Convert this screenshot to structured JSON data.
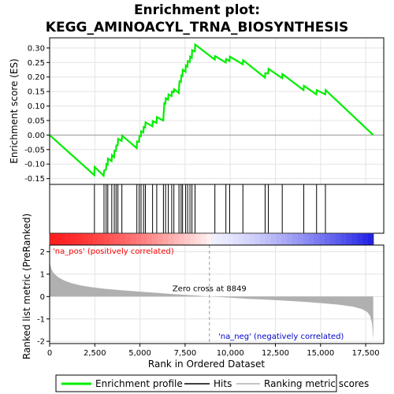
{
  "chart_data": {
    "type": "line",
    "title_line1": "Enrichment plot:",
    "title_line2": "KEGG_AMINOACYL_TRNA_BIOSYNTHESIS",
    "es_ylabel": "Enrichment score (ES)",
    "metric_ylabel": "Ranked list metric (PreRanked)",
    "xlabel": "Rank in Ordered Dataset",
    "xlim": [
      0,
      18500
    ],
    "es_ylim": [
      -0.17,
      0.335
    ],
    "metric_ylim": [
      -2.1,
      2.3
    ],
    "x_ticks": [
      0,
      2500,
      5000,
      7500,
      10000,
      12500,
      15000,
      17500
    ],
    "x_tick_labels": [
      "0",
      "2,500",
      "5,000",
      "7,500",
      "10,000",
      "12,500",
      "15,000",
      "17,500"
    ],
    "es_ticks": [
      -0.15,
      -0.1,
      -0.05,
      0.0,
      0.05,
      0.1,
      0.15,
      0.2,
      0.25,
      0.3
    ],
    "es_tick_labels": [
      "-0.15",
      "-0.10",
      "-0.05",
      "0.00",
      "0.05",
      "0.10",
      "0.15",
      "0.20",
      "0.25",
      "0.30"
    ],
    "metric_ticks": [
      -2,
      -1,
      0,
      1,
      2
    ],
    "metric_tick_labels": [
      "-2",
      "-1",
      "0",
      "1",
      "2"
    ],
    "total_genes": 17920,
    "zero_cross_rank": 8849,
    "zero_cross_label": "Zero cross at 8849",
    "pos_label": "'na_pos' (positively correlated)",
    "neg_label": "'na_neg' (negatively correlated)",
    "hits": [
      2480,
      3010,
      3130,
      3220,
      3440,
      3580,
      3680,
      3780,
      4000,
      4830,
      4960,
      5060,
      5200,
      5300,
      5700,
      5930,
      6300,
      6420,
      6570,
      6760,
      6880,
      7160,
      7280,
      7360,
      7530,
      7640,
      7770,
      7880,
      8050,
      9150,
      9760,
      9970,
      10700,
      11930,
      12110,
      12880,
      14070,
      14780,
      15270
    ],
    "es_points": [
      [
        0,
        0.0
      ],
      [
        2470,
        -0.138
      ],
      [
        2490,
        -0.11
      ],
      [
        2990,
        -0.14
      ],
      [
        3020,
        -0.122
      ],
      [
        3120,
        -0.12
      ],
      [
        3140,
        -0.1
      ],
      [
        3210,
        -0.102
      ],
      [
        3230,
        -0.081
      ],
      [
        3430,
        -0.09
      ],
      [
        3450,
        -0.069
      ],
      [
        3570,
        -0.076
      ],
      [
        3590,
        -0.054
      ],
      [
        3670,
        -0.055
      ],
      [
        3690,
        -0.036
      ],
      [
        3770,
        -0.035
      ],
      [
        3790,
        -0.013
      ],
      [
        3990,
        -0.02
      ],
      [
        4010,
        -0.002
      ],
      [
        4820,
        -0.045
      ],
      [
        4840,
        -0.022
      ],
      [
        4950,
        -0.024
      ],
      [
        4970,
        -0.005
      ],
      [
        5050,
        -0.005
      ],
      [
        5070,
        0.013
      ],
      [
        5190,
        0.009
      ],
      [
        5210,
        0.028
      ],
      [
        5290,
        0.026
      ],
      [
        5310,
        0.044
      ],
      [
        5690,
        0.03
      ],
      [
        5710,
        0.048
      ],
      [
        5920,
        0.042
      ],
      [
        5940,
        0.062
      ],
      [
        6290,
        0.05
      ],
      [
        6310,
        0.07
      ],
      [
        6330,
        0.09
      ],
      [
        6350,
        0.11
      ],
      [
        6410,
        0.108
      ],
      [
        6430,
        0.127
      ],
      [
        6560,
        0.122
      ],
      [
        6580,
        0.14
      ],
      [
        6750,
        0.134
      ],
      [
        6770,
        0.15
      ],
      [
        6870,
        0.148
      ],
      [
        6890,
        0.158
      ],
      [
        7150,
        0.145
      ],
      [
        7170,
        0.165
      ],
      [
        7190,
        0.185
      ],
      [
        7270,
        0.183
      ],
      [
        7290,
        0.205
      ],
      [
        7350,
        0.203
      ],
      [
        7370,
        0.225
      ],
      [
        7520,
        0.218
      ],
      [
        7540,
        0.24
      ],
      [
        7630,
        0.236
      ],
      [
        7650,
        0.255
      ],
      [
        7760,
        0.252
      ],
      [
        7780,
        0.27
      ],
      [
        7870,
        0.266
      ],
      [
        7890,
        0.292
      ],
      [
        8040,
        0.288
      ],
      [
        8060,
        0.312
      ],
      [
        9140,
        0.26
      ],
      [
        9160,
        0.272
      ],
      [
        9750,
        0.25
      ],
      [
        9770,
        0.262
      ],
      [
        9960,
        0.255
      ],
      [
        9980,
        0.27
      ],
      [
        10690,
        0.244
      ],
      [
        10710,
        0.258
      ],
      [
        11920,
        0.198
      ],
      [
        11940,
        0.213
      ],
      [
        12100,
        0.212
      ],
      [
        12120,
        0.228
      ],
      [
        12870,
        0.196
      ],
      [
        12890,
        0.21
      ],
      [
        14060,
        0.155
      ],
      [
        14080,
        0.17
      ],
      [
        14770,
        0.14
      ],
      [
        14790,
        0.155
      ],
      [
        15260,
        0.14
      ],
      [
        15280,
        0.155
      ],
      [
        17920,
        0.0
      ]
    ],
    "metric_points": [
      [
        0,
        1.6
      ],
      [
        40,
        1.4
      ],
      [
        100,
        1.22
      ],
      [
        200,
        1.08
      ],
      [
        350,
        0.95
      ],
      [
        500,
        0.85
      ],
      [
        800,
        0.72
      ],
      [
        1200,
        0.6
      ],
      [
        1700,
        0.5
      ],
      [
        2300,
        0.42
      ],
      [
        3000,
        0.35
      ],
      [
        4000,
        0.28
      ],
      [
        5000,
        0.22
      ],
      [
        6000,
        0.16
      ],
      [
        7000,
        0.1
      ],
      [
        8000,
        0.05
      ],
      [
        8849,
        0.0
      ],
      [
        10000,
        -0.05
      ],
      [
        11000,
        -0.1
      ],
      [
        12000,
        -0.14
      ],
      [
        13000,
        -0.18
      ],
      [
        14000,
        -0.23
      ],
      [
        15000,
        -0.29
      ],
      [
        16000,
        -0.36
      ],
      [
        16800,
        -0.45
      ],
      [
        17300,
        -0.56
      ],
      [
        17600,
        -0.7
      ],
      [
        17750,
        -0.88
      ],
      [
        17850,
        -1.2
      ],
      [
        17920,
        -1.9
      ]
    ],
    "legend": [
      "Enrichment profile",
      "Hits",
      "Ranking metric scores"
    ],
    "colors": {
      "es_line": "#00ee00",
      "hit_line": "#000000",
      "metric_fill": "#b0b0b0",
      "pos_text": "#ff0000",
      "neg_text": "#0000cc",
      "zero_line": "#999999"
    },
    "grid": true
  }
}
